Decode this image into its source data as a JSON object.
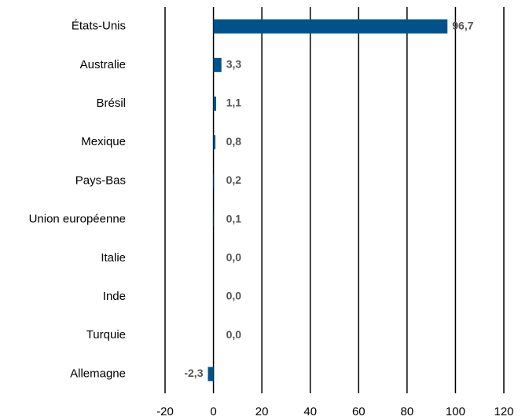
{
  "chart_data": {
    "type": "bar",
    "orientation": "horizontal",
    "categories": [
      "États-Unis",
      "Australie",
      "Brésil",
      "Mexique",
      "Pays-Bas",
      "Union européenne",
      "Italie",
      "Inde",
      "Turquie",
      "Allemagne"
    ],
    "values": [
      96.7,
      3.3,
      1.1,
      0.8,
      0.2,
      0.1,
      0.0,
      0.0,
      0.0,
      -2.3
    ],
    "value_labels": [
      "96,7",
      "3,3",
      "1,1",
      "0,8",
      "0,2",
      "0,1",
      "0,0",
      "0,0",
      "0,0",
      "-2,3"
    ],
    "color": "#00538a",
    "xlim": [
      -20,
      120
    ],
    "xticks": [
      -20,
      0,
      20,
      40,
      60,
      80,
      100,
      120
    ],
    "grid": true
  }
}
